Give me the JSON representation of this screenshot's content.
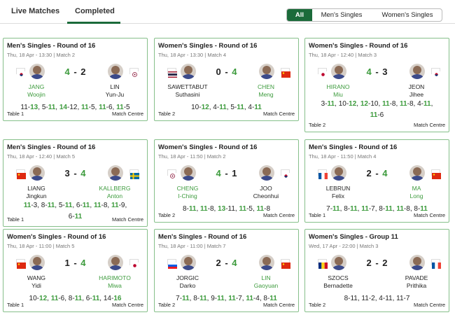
{
  "tabs": {
    "live": "Live Matches",
    "completed": "Completed"
  },
  "filters": {
    "all": "All",
    "mens": "Men's Singles",
    "womens": "Women's Singles"
  },
  "colors": {
    "accent": "#1b6b3a",
    "winner": "#3d9b3d",
    "card_border": "#86c08a"
  },
  "matches": [
    {
      "title": "Men's Singles - Round of 16",
      "sub": "Thu, 18 Apr - 13:30 | Match 2",
      "p1": {
        "first": "JANG",
        "last": "Woojin",
        "flag": "korea",
        "winner": true
      },
      "p2": {
        "first": "LIN",
        "last": "Yun-Ju",
        "flag": "tpe",
        "winner": false
      },
      "score1": "4",
      "score2": "2",
      "sets": [
        [
          "11",
          "13"
        ],
        [
          "5",
          "11"
        ],
        [
          "14",
          "12"
        ],
        [
          "11",
          "5"
        ],
        [
          "11",
          "6"
        ],
        [
          "11",
          "5"
        ]
      ],
      "table": "Table 1",
      "centre": "Match Centre"
    },
    {
      "title": "Women's Singles - Round of 16",
      "sub": "Thu, 18 Apr - 13:30 | Match 4",
      "p1": {
        "first": "SAWETTABUT",
        "last": "Suthasini",
        "flag": "thailand",
        "winner": false
      },
      "p2": {
        "first": "CHEN",
        "last": "Meng",
        "flag": "china",
        "winner": true
      },
      "score1": "0",
      "score2": "4",
      "sets": [
        [
          "10",
          "12"
        ],
        [
          "4",
          "11"
        ],
        [
          "5",
          "11"
        ],
        [
          "4",
          "11"
        ]
      ],
      "table": "Table 2",
      "centre": "Match Centre"
    },
    {
      "title": "Women's Singles - Round of 16",
      "sub": "Thu, 18 Apr - 12:40 | Match 3",
      "p1": {
        "first": "HIRANO",
        "last": "Miu",
        "flag": "japan",
        "winner": true
      },
      "p2": {
        "first": "JEON",
        "last": "Jihee",
        "flag": "korea",
        "winner": false
      },
      "score1": "4",
      "score2": "3",
      "sets": [
        [
          "3",
          "11"
        ],
        [
          "10",
          "12"
        ],
        [
          "12",
          "10"
        ],
        [
          "11",
          "8"
        ],
        [
          "11",
          "8"
        ],
        [
          "4",
          "11"
        ],
        [
          "11",
          "6"
        ]
      ],
      "table": "Table 2",
      "centre": "Match Centre"
    },
    {
      "title": "Men's Singles - Round of 16",
      "sub": "Thu, 18 Apr - 12:40 | Match 5",
      "p1": {
        "first": "LIANG",
        "last": "Jingkun",
        "flag": "china",
        "winner": false
      },
      "p2": {
        "first": "KALLBERG",
        "last": "Anton",
        "flag": "sweden",
        "winner": true
      },
      "score1": "3",
      "score2": "4",
      "sets": [
        [
          "11",
          "3"
        ],
        [
          "8",
          "11"
        ],
        [
          "5",
          "11"
        ],
        [
          "6",
          "11"
        ],
        [
          "11",
          "8"
        ],
        [
          "11",
          "9"
        ],
        [
          "6",
          "11"
        ]
      ],
      "table": "Table 1",
      "centre": "Match Centre"
    },
    {
      "title": "Women's Singles - Round of 16",
      "sub": "Thu, 18 Apr - 11:50 | Match 2",
      "p1": {
        "first": "CHENG",
        "last": "I-Ching",
        "flag": "tpe",
        "winner": true
      },
      "p2": {
        "first": "JOO",
        "last": "Cheonhui",
        "flag": "korea",
        "winner": false
      },
      "score1": "4",
      "score2": "1",
      "sets": [
        [
          "8",
          "11"
        ],
        [
          "11",
          "8"
        ],
        [
          "13",
          "11"
        ],
        [
          "11",
          "5"
        ],
        [
          "11",
          "8"
        ]
      ],
      "table": "Table 2",
      "centre": "Match Centre"
    },
    {
      "title": "Men's Singles - Round of 16",
      "sub": "Thu, 18 Apr - 11:50 | Match 4",
      "p1": {
        "first": "LEBRUN",
        "last": "Felix",
        "flag": "france",
        "winner": false
      },
      "p2": {
        "first": "MA",
        "last": "Long",
        "flag": "china",
        "winner": true
      },
      "score1": "2",
      "score2": "4",
      "sets": [
        [
          "7",
          "11"
        ],
        [
          "8",
          "11"
        ],
        [
          "11",
          "7"
        ],
        [
          "8",
          "11"
        ],
        [
          "11",
          "8"
        ],
        [
          "8",
          "11"
        ]
      ],
      "table": "Table 1",
      "centre": "Match Centre"
    },
    {
      "title": "Women's Singles - Round of 16",
      "sub": "Thu, 18 Apr - 11:00 | Match 5",
      "p1": {
        "first": "WANG",
        "last": "Yidi",
        "flag": "china",
        "winner": false
      },
      "p2": {
        "first": "HARIMOTO",
        "last": "Miwa",
        "flag": "japan",
        "winner": true
      },
      "score1": "1",
      "score2": "4",
      "sets": [
        [
          "10",
          "12"
        ],
        [
          "11",
          "6"
        ],
        [
          "8",
          "11"
        ],
        [
          "6",
          "11"
        ],
        [
          "14",
          "16"
        ]
      ],
      "table": "Table 1",
      "centre": "Match Centre"
    },
    {
      "title": "Men's Singles - Round of 16",
      "sub": "Thu, 18 Apr - 11:00 | Match 7",
      "p1": {
        "first": "JORGIC",
        "last": "Darko",
        "flag": "slovenia",
        "winner": false
      },
      "p2": {
        "first": "LIN",
        "last": "Gaoyuan",
        "flag": "china",
        "winner": true
      },
      "score1": "2",
      "score2": "4",
      "sets": [
        [
          "7",
          "11"
        ],
        [
          "8",
          "11"
        ],
        [
          "9",
          "11"
        ],
        [
          "11",
          "7"
        ],
        [
          "11",
          "4"
        ],
        [
          "8",
          "11"
        ]
      ],
      "table": "Table 2",
      "centre": "Match Centre"
    },
    {
      "title": "Women's Singles - Group 11",
      "sub": "Wed, 17 Apr - 22:00 | Match 3",
      "p1": {
        "first": "SZOCS",
        "last": "Bernadette",
        "flag": "romania",
        "winner": false
      },
      "p2": {
        "first": "PAVADE",
        "last": "Prithika",
        "flag": "france",
        "winner": false
      },
      "score1": "2",
      "score2": "2",
      "sets": [
        [
          "8",
          "11"
        ],
        [
          "11",
          "2"
        ],
        [
          "4",
          "11"
        ],
        [
          "11",
          "7"
        ]
      ],
      "unplayed": true,
      "table": "Table 2",
      "centre": "Match Centre"
    }
  ]
}
